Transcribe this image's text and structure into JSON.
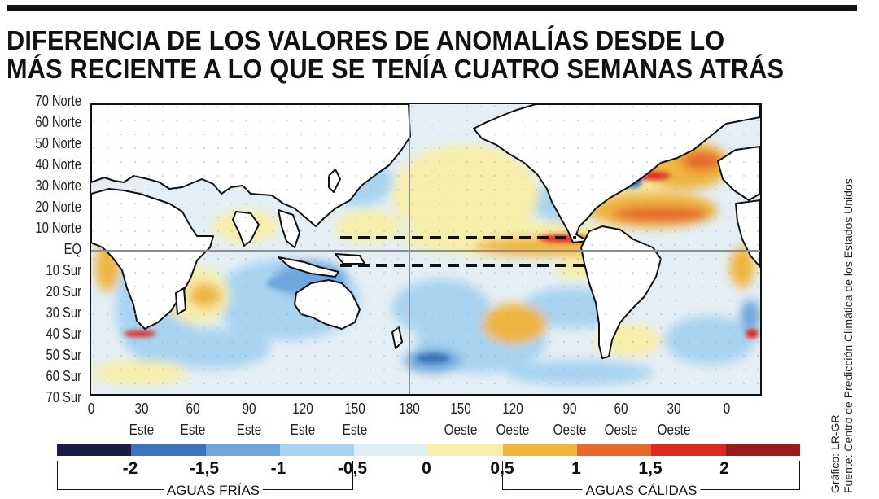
{
  "title": {
    "line1": "DIFERENCIA DE LOS VALORES DE ANOMALÍAS DESDE LO",
    "line2": "MÁS RECIENTE A LO QUE SE TENÍA CUATRO SEMANAS ATRÁS"
  },
  "map": {
    "lat_labels": [
      "70 Norte",
      "60 Norte",
      "50 Norte",
      "40 Norte",
      "30 Norte",
      "20 Norte",
      "10 Norte",
      "EQ",
      "10 Sur",
      "20 Sur",
      "30 Sur",
      "40 Sur",
      "50 Sur",
      "60 Sur",
      "70 Sur"
    ],
    "lon_labels": [
      {
        "value": "0",
        "dir": ""
      },
      {
        "value": "30",
        "dir": "Este"
      },
      {
        "value": "60",
        "dir": "Este"
      },
      {
        "value": "90",
        "dir": "Este"
      },
      {
        "value": "120",
        "dir": "Este"
      },
      {
        "value": "150",
        "dir": "Este"
      },
      {
        "value": "180",
        "dir": ""
      },
      {
        "value": "150",
        "dir": "Oeste"
      },
      {
        "value": "120",
        "dir": "Oeste"
      },
      {
        "value": "90",
        "dir": "Oeste"
      },
      {
        "value": "60",
        "dir": "Oeste"
      },
      {
        "value": "30",
        "dir": "Oeste"
      },
      {
        "value": "0",
        "dir": ""
      }
    ]
  },
  "legend": {
    "colors": [
      "#1b1d45",
      "#3d73b9",
      "#6ea6dc",
      "#a8d4f1",
      "#dfeef5",
      "#f6eeaa",
      "#f0b53f",
      "#e6682a",
      "#dc2a22",
      "#9b1b1b"
    ],
    "values": [
      "-2",
      "-1,5",
      "-1",
      "-0,5",
      "0",
      "0,5",
      "1",
      "1,5",
      "2"
    ],
    "cold_label": "AGUAS FRÍAS",
    "warm_label": "AGUAS CÁLIDAS"
  },
  "credits": {
    "graphic": "Gráfico: LR-GR",
    "source": "Fuente: Centro de Predicción Climática de los Estados Unidos"
  }
}
